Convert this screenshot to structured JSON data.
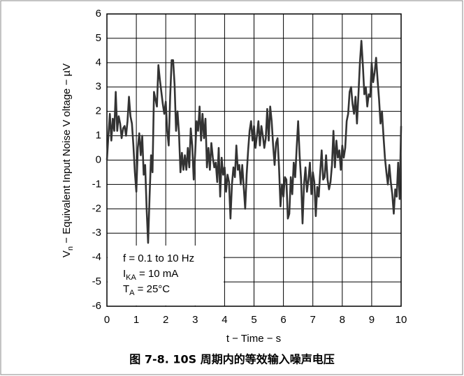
{
  "chart_data": {
    "type": "line",
    "ylabel": {
      "main": "V",
      "sub": "n",
      "rest": " − Equivalent Input Noise V oltage − µV"
    },
    "xlabel": "t − Time − s",
    "caption": "图 7-8. 10S 周期内的等效输入噪声电压",
    "annotations": [
      {
        "main": "f = 0.1 to 10 Hz"
      },
      {
        "main": "I",
        "sub": "KA",
        "rest": " = 10 mA"
      },
      {
        "main": "T",
        "sub": "A",
        "rest": " = 25°C"
      }
    ],
    "xlim": [
      0,
      10
    ],
    "ylim": [
      -6,
      6
    ],
    "xticks": [
      0,
      1,
      2,
      3,
      4,
      5,
      6,
      7,
      8,
      9,
      10
    ],
    "yticks": [
      -6,
      -5,
      -4,
      -3,
      -2,
      -1,
      0,
      1,
      2,
      3,
      4,
      5,
      6
    ],
    "grid": true,
    "series": [
      {
        "color": "#333333",
        "x": [
          0,
          0.05,
          0.1,
          0.15,
          0.2,
          0.25,
          0.3,
          0.35,
          0.4,
          0.45,
          0.5,
          0.55,
          0.6,
          0.65,
          0.7,
          0.75,
          0.8,
          0.85,
          0.9,
          0.95,
          1,
          1.05,
          1.1,
          1.15,
          1.2,
          1.25,
          1.3,
          1.35,
          1.4,
          1.45,
          1.5,
          1.55,
          1.6,
          1.65,
          1.7,
          1.75,
          1.8,
          1.85,
          1.9,
          1.95,
          2,
          2.05,
          2.1,
          2.15,
          2.2,
          2.25,
          2.3,
          2.35,
          2.4,
          2.45,
          2.5,
          2.55,
          2.6,
          2.65,
          2.7,
          2.75,
          2.8,
          2.85,
          2.9,
          2.95,
          3,
          3.05,
          3.1,
          3.15,
          3.2,
          3.25,
          3.3,
          3.35,
          3.4,
          3.45,
          3.5,
          3.55,
          3.6,
          3.65,
          3.7,
          3.75,
          3.8,
          3.85,
          3.9,
          3.95,
          4,
          4.05,
          4.1,
          4.15,
          4.2,
          4.25,
          4.3,
          4.35,
          4.4,
          4.45,
          4.5,
          4.55,
          4.6,
          4.65,
          4.7,
          4.75,
          4.8,
          4.85,
          4.9,
          4.95,
          5,
          5.05,
          5.1,
          5.15,
          5.2,
          5.25,
          5.3,
          5.35,
          5.4,
          5.45,
          5.5,
          5.55,
          5.6,
          5.65,
          5.7,
          5.75,
          5.8,
          5.85,
          5.9,
          5.95,
          6,
          6.05,
          6.1,
          6.15,
          6.2,
          6.25,
          6.3,
          6.35,
          6.4,
          6.45,
          6.5,
          6.55,
          6.6,
          6.65,
          6.7,
          6.75,
          6.8,
          6.85,
          6.9,
          6.95,
          7,
          7.05,
          7.1,
          7.15,
          7.2,
          7.25,
          7.3,
          7.35,
          7.4,
          7.45,
          7.5,
          7.55,
          7.6,
          7.65,
          7.7,
          7.75,
          7.8,
          7.85,
          7.9,
          7.95,
          8,
          8.05,
          8.1,
          8.15,
          8.2,
          8.25,
          8.3,
          8.35,
          8.4,
          8.45,
          8.5,
          8.55,
          8.6,
          8.65,
          8.7,
          8.75,
          8.8,
          8.85,
          8.9,
          8.95,
          9,
          9.05,
          9.1,
          9.15,
          9.2,
          9.25,
          9.3,
          9.35,
          9.4,
          9.45,
          9.5,
          9.55,
          9.6,
          9.65,
          9.7,
          9.75,
          9.8,
          9.85,
          9.9,
          9.95,
          10
        ],
        "values": [
          0,
          1.0,
          1.9,
          0.8,
          1.7,
          1.2,
          2.8,
          1.2,
          1.8,
          1.5,
          0.9,
          1.3,
          1.4,
          1.0,
          1.6,
          2.6,
          1.8,
          1.5,
          0.6,
          -0.5,
          -1.3,
          0.5,
          1.1,
          0.2,
          1.0,
          -0.6,
          -0.2,
          -2.0,
          -3.4,
          -1.5,
          0.2,
          -0.5,
          2.8,
          2.5,
          2.2,
          3.9,
          3.3,
          2.8,
          2.3,
          1.9,
          2.4,
          1.2,
          0.6,
          2.6,
          4.1,
          4.1,
          3.1,
          1.2,
          2.0,
          1.1,
          -0.5,
          0.3,
          -0.4,
          0.2,
          -0.4,
          0.5,
          -0.3,
          1.3,
          0.6,
          -0.8,
          0.3,
          1.6,
          1.2,
          2.2,
          0.8,
          1.9,
          0.9,
          1.7,
          -0.3,
          0.5,
          -0.4,
          0.7,
          0.1,
          -0.3,
          -0.1,
          -0.9,
          0.5,
          -1.5,
          0.1,
          -0.6,
          -0.3,
          -1.3,
          -0.6,
          -0.9,
          -2.4,
          -1.0,
          -0.3,
          -0.7,
          0.6,
          -0.4,
          -0.2,
          -1.0,
          -0.2,
          -1.1,
          -2.0,
          -0.6,
          0.4,
          1.2,
          1.6,
          0.8,
          1.4,
          0.5,
          1.0,
          1.6,
          0.6,
          1.4,
          1.0,
          0.5,
          0.9,
          2.1,
          0.8,
          2.2,
          1.6,
          0.6,
          -0.2,
          0.7,
          0.9,
          -0.3,
          -1.9,
          -1.0,
          -1.5,
          -0.7,
          -0.8,
          -2.4,
          -2.2,
          -0.7,
          -1.4,
          -0.1,
          -0.7,
          0.5,
          1.6,
          0.2,
          -0.8,
          -2.6,
          -1.0,
          -0.3,
          -1.3,
          -0.8,
          -0.1,
          -1.4,
          -0.5,
          -0.9,
          -2.3,
          -1.1,
          -1.5,
          -0.5,
          0.4,
          -0.8,
          -0.7,
          0.2,
          -0.8,
          -1.2,
          -0.9,
          -0.2,
          1.2,
          -0.3,
          0.8,
          0.1,
          0.4,
          -0.4,
          0.6,
          0.1,
          0.5,
          1.6,
          1.9,
          2.8,
          3.0,
          2.3,
          1.9,
          2.6,
          1.5,
          2.7,
          4.0,
          4.9,
          3.9,
          2.7,
          3.0,
          2.2,
          2.7,
          2.6,
          4.0,
          3.2,
          3.6,
          4.2,
          3.3,
          2.5,
          1.5,
          2.0,
          1.0,
          0.1,
          -0.5,
          -1.0,
          -0.2,
          -0.9,
          -1.4,
          -2.2,
          -1.2,
          -1.5,
          -0.1,
          -1.6,
          1.4
        ]
      }
    ]
  }
}
